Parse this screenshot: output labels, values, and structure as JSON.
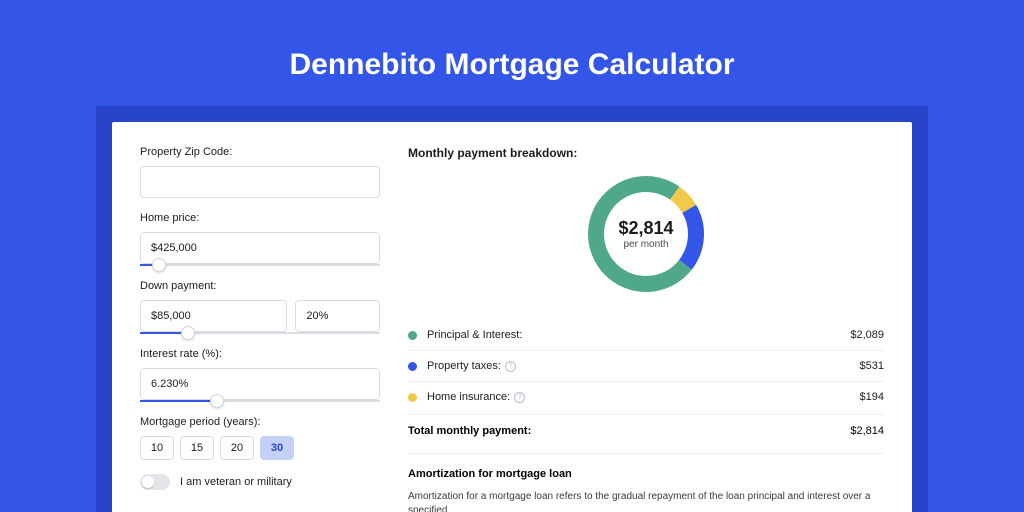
{
  "page_title": "Dennebito Mortgage Calculator",
  "colors": {
    "page_bg": "#3355e8",
    "shadow_bg": "#2845c9",
    "card_bg": "#ffffff",
    "border": "#d9dde3",
    "slider_fill": "#3355e8",
    "green": "#4fa88a",
    "blue": "#3355e8",
    "yellow": "#f3c94c"
  },
  "form": {
    "zip": {
      "label": "Property Zip Code:",
      "value": ""
    },
    "price": {
      "label": "Home price:",
      "value": "$425,000",
      "slider_pct": 8
    },
    "down": {
      "label": "Down payment:",
      "value": "$85,000",
      "pct": "20%",
      "slider_pct": 20
    },
    "rate": {
      "label": "Interest rate (%):",
      "value": "6.230%",
      "slider_pct": 32
    },
    "period": {
      "label": "Mortgage period (years):",
      "options": [
        "10",
        "15",
        "20",
        "30"
      ],
      "selected": "30"
    },
    "veteran": {
      "label": "I am veteran or military",
      "on": false
    }
  },
  "breakdown": {
    "title": "Monthly payment breakdown:",
    "center_amount": "$2,814",
    "center_sub": "per month",
    "donut": {
      "slices": [
        {
          "color": "#4fa88a",
          "pct": 74.2
        },
        {
          "color": "#3355e8",
          "pct": 18.9
        },
        {
          "color": "#f3c94c",
          "pct": 6.9
        }
      ],
      "thickness": 16,
      "radius": 50
    },
    "items": [
      {
        "label": "Principal & Interest:",
        "value": "$2,089",
        "color": "#4fa88a",
        "info": false
      },
      {
        "label": "Property taxes:",
        "value": "$531",
        "color": "#3355e8",
        "info": true
      },
      {
        "label": "Home insurance:",
        "value": "$194",
        "color": "#f3c94c",
        "info": true
      }
    ],
    "total_label": "Total monthly payment:",
    "total_value": "$2,814"
  },
  "amortization": {
    "title": "Amortization for mortgage loan",
    "body": "Amortization for a mortgage loan refers to the gradual repayment of the loan principal and interest over a specified"
  }
}
